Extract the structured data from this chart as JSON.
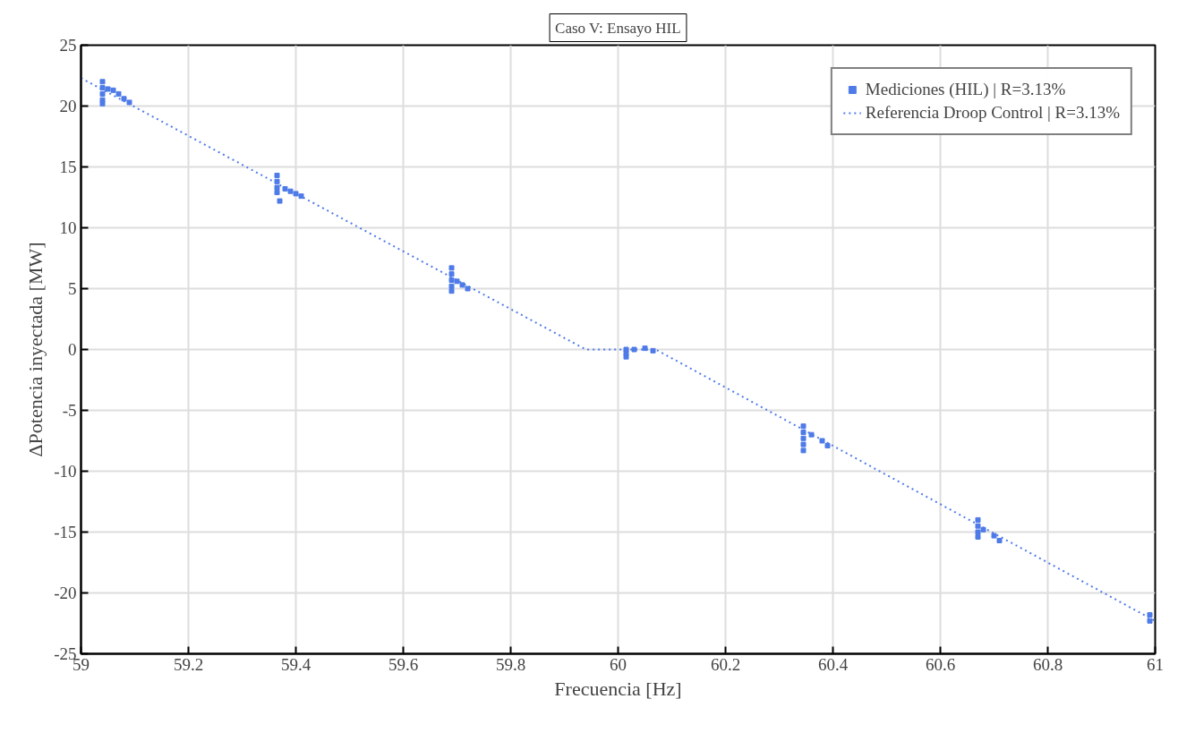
{
  "chart_data": {
    "type": "scatter",
    "title": "Caso V: Ensayo HIL",
    "xlabel": "Frecuencia [Hz]",
    "ylabel": "ΔPotencia inyectada [MW]",
    "xlim": [
      59,
      61
    ],
    "ylim": [
      -25,
      25
    ],
    "xticks": [
      59,
      59.2,
      59.4,
      59.6,
      59.8,
      60,
      60.2,
      60.4,
      60.6,
      60.8,
      61
    ],
    "yticks": [
      -25,
      -20,
      -15,
      -10,
      -5,
      0,
      5,
      10,
      15,
      20,
      25
    ],
    "grid": true,
    "legend": "top right",
    "series": [
      {
        "name": "Mediciones (HIL) | R=3.13%",
        "marker": "square",
        "color": "#4f7be8",
        "x": [
          59.04,
          59.04,
          59.04,
          59.04,
          59.04,
          59.05,
          59.06,
          59.07,
          59.08,
          59.09,
          59.365,
          59.365,
          59.365,
          59.365,
          59.37,
          59.38,
          59.39,
          59.4,
          59.41,
          59.69,
          59.69,
          59.69,
          59.69,
          59.69,
          59.7,
          59.71,
          59.72,
          60.015,
          60.015,
          60.015,
          60.03,
          60.05,
          60.065,
          60.345,
          60.345,
          60.345,
          60.345,
          60.345,
          60.36,
          60.38,
          60.39,
          60.67,
          60.67,
          60.67,
          60.67,
          60.68,
          60.7,
          60.71,
          60.99,
          60.99
        ],
        "values": [
          22.0,
          21.5,
          21.0,
          20.5,
          20.2,
          21.4,
          21.3,
          21.0,
          20.6,
          20.3,
          14.3,
          13.8,
          13.3,
          12.9,
          12.2,
          13.2,
          13.0,
          12.8,
          12.6,
          6.7,
          6.2,
          5.7,
          5.2,
          4.8,
          5.6,
          5.3,
          5.0,
          0,
          -0.3,
          -0.6,
          0,
          0.1,
          -0.1,
          -6.3,
          -6.8,
          -7.3,
          -7.8,
          -8.3,
          -7.0,
          -7.5,
          -7.9,
          -14.0,
          -14.5,
          -15.0,
          -15.4,
          -14.8,
          -15.3,
          -15.7,
          -21.8,
          -22.3
        ]
      },
      {
        "name": "Referencia Droop Control | R=3.13%",
        "type": "line",
        "line_style": "dotted",
        "color": "#4f7be8",
        "x": [
          59,
          59.94,
          60.07,
          61
        ],
        "values": [
          22.3,
          0,
          0,
          -22.3
        ]
      }
    ]
  }
}
